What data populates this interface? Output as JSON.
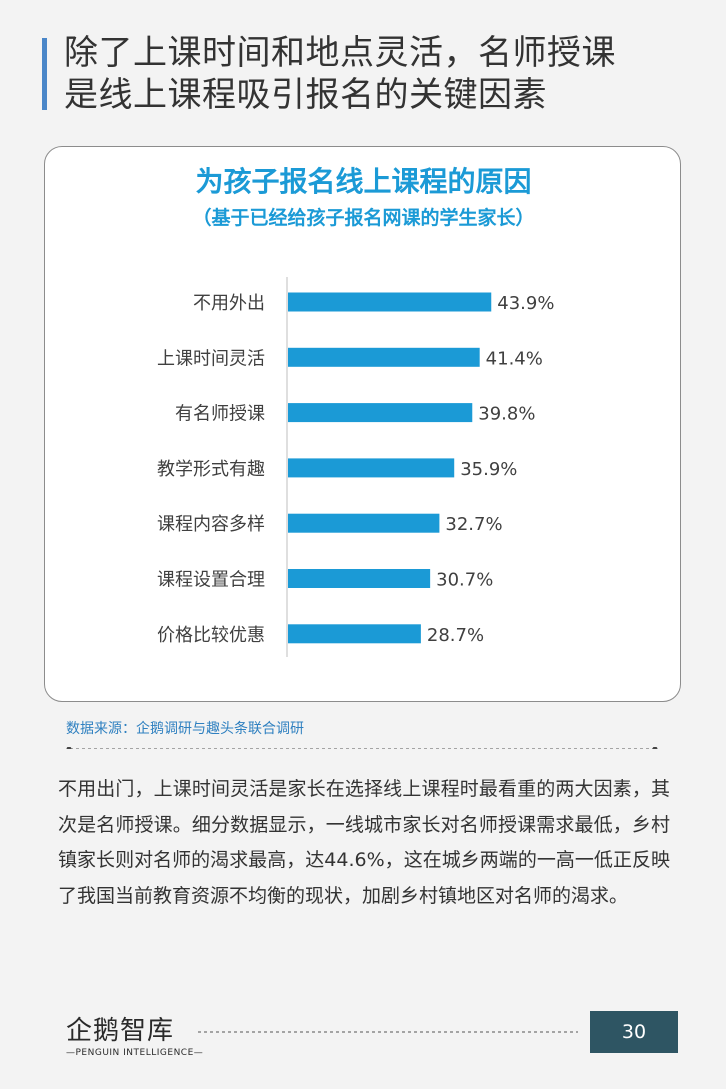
{
  "headline": {
    "line1": "除了上课时间和地点灵活，名师授课",
    "line2": "是线上课程吸引报名的关键因素"
  },
  "colors": {
    "accent_bar": "#4a86c8",
    "chart_title": "#1b9ad6",
    "bar_fill": "#1b9ad6",
    "source_text": "#2f80c0",
    "page_badge": "#2e5563"
  },
  "chart_data": {
    "type": "bar",
    "orientation": "horizontal",
    "title": "为孩子报名线上课程的原因",
    "subtitle": "（基于已经给孩子报名网课的学生家长）",
    "categories": [
      "不用外出",
      "上课时间灵活",
      "有名师授课",
      "教学形式有趣",
      "课程内容多样",
      "课程设置合理",
      "价格比较优惠"
    ],
    "values": [
      43.9,
      41.4,
      39.8,
      35.9,
      32.7,
      30.7,
      28.7
    ],
    "value_labels": [
      "43.9%",
      "41.4%",
      "39.8%",
      "35.9%",
      "32.7%",
      "30.7%",
      "28.7%"
    ],
    "unit": "%",
    "xlim": [
      0,
      100
    ],
    "grid": false,
    "legend": "none"
  },
  "source": "数据来源：企鹅调研与趣头条联合调研",
  "body_paragraph": "不用出门，上课时间灵活是家长在选择线上课程时最看重的两大因素，其次是名师授课。细分数据显示，一线城市家长对名师授课需求最低，乡村镇家长则对名师的渴求最高，达44.6%，这在城乡两端的一高一低正反映了我国当前教育资源不均衡的现状，加剧乡村镇地区对名师的渴求。",
  "footer": {
    "logo_cn": "企鹅智库",
    "logo_en": "—PENGUIN INTELLIGENCE—",
    "page_number": "30"
  }
}
